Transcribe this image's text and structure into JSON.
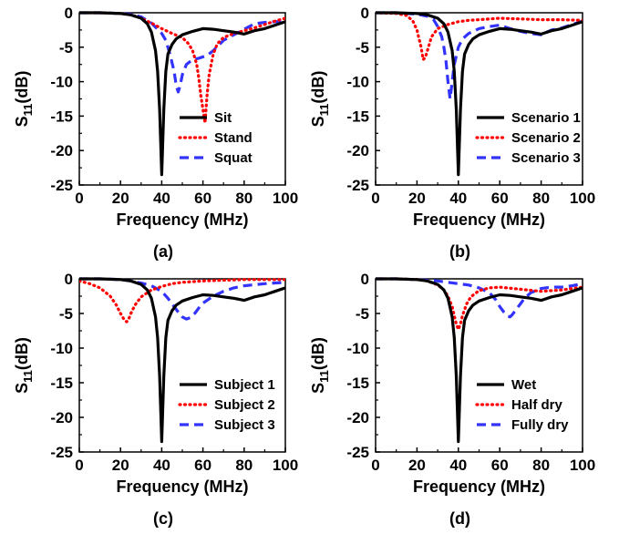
{
  "colors": {
    "solid": "#000000",
    "dotted": "#ff0000",
    "dashed": "#3333ff"
  },
  "chart_data": [
    {
      "type": "line",
      "panel_label": "(a)",
      "xlabel": "Frequency (MHz)",
      "ylabel_main": "S",
      "ylabel_sub": "11",
      "ylabel_unit": "(dB)",
      "xlim": [
        0,
        100
      ],
      "ylim": [
        -25,
        0
      ],
      "xticks": [
        "0",
        "20",
        "40",
        "60",
        "80",
        "100"
      ],
      "yticks": [
        "0",
        "-5",
        "-10",
        "-15",
        "-20",
        "-25"
      ],
      "legend_position": "bottom-right",
      "series": [
        {
          "name": "Sit",
          "style": "solid",
          "x": [
            0,
            10,
            20,
            25,
            30,
            33,
            35,
            37,
            38,
            39,
            40,
            41,
            42,
            43,
            45,
            47,
            50,
            55,
            60,
            65,
            70,
            75,
            80,
            85,
            90,
            95,
            100
          ],
          "y": [
            0,
            0,
            -0.1,
            -0.3,
            -0.8,
            -1.6,
            -2.8,
            -5.5,
            -8.5,
            -14,
            -23.5,
            -14,
            -8.5,
            -6,
            -4.6,
            -3.8,
            -3.2,
            -2.7,
            -2.3,
            -2.4,
            -2.6,
            -2.8,
            -3.1,
            -2.6,
            -2.3,
            -1.8,
            -1.3
          ]
        },
        {
          "name": "Stand",
          "style": "dotted",
          "x": [
            0,
            10,
            20,
            25,
            30,
            35,
            40,
            45,
            50,
            53,
            55,
            57,
            58,
            59,
            60,
            61,
            62,
            63,
            65,
            67,
            70,
            75,
            80,
            85,
            90,
            95,
            100
          ],
          "y": [
            0,
            0,
            -0.1,
            -0.3,
            -0.8,
            -1.5,
            -2.3,
            -3.0,
            -3.6,
            -4.5,
            -5.5,
            -7.5,
            -9.5,
            -12,
            -14,
            -16,
            -12,
            -9,
            -6,
            -4.5,
            -3.6,
            -3,
            -2.6,
            -2.2,
            -1.7,
            -1.2,
            -0.8
          ]
        },
        {
          "name": "Squat",
          "style": "dashed",
          "x": [
            0,
            10,
            20,
            25,
            30,
            35,
            40,
            42,
            44,
            46,
            47,
            48,
            49,
            50,
            52,
            55,
            58,
            62,
            65,
            70,
            75,
            80,
            85,
            90,
            95,
            100
          ],
          "y": [
            0,
            0,
            -0.1,
            -0.2,
            -0.6,
            -1.5,
            -3,
            -4,
            -6,
            -8.5,
            -10.5,
            -11.5,
            -10.5,
            -9,
            -7.5,
            -6.8,
            -6.6,
            -6.2,
            -5.5,
            -4,
            -3.2,
            -2.4,
            -1.6,
            -1.4,
            -1.3,
            -1.2
          ]
        }
      ]
    },
    {
      "type": "line",
      "panel_label": "(b)",
      "xlabel": "Frequency (MHz)",
      "ylabel_main": "S",
      "ylabel_sub": "11",
      "ylabel_unit": "(dB)",
      "xlim": [
        0,
        100
      ],
      "ylim": [
        -25,
        0
      ],
      "xticks": [
        "0",
        "20",
        "40",
        "60",
        "80",
        "100"
      ],
      "yticks": [
        "0",
        "-5",
        "-10",
        "-15",
        "-20",
        "-25"
      ],
      "legend_position": "bottom-right",
      "series": [
        {
          "name": "Scenario 1",
          "style": "solid",
          "x": [
            0,
            10,
            20,
            25,
            30,
            33,
            35,
            37,
            38,
            39,
            40,
            41,
            42,
            43,
            45,
            47,
            50,
            55,
            60,
            65,
            70,
            75,
            80,
            85,
            90,
            95,
            100
          ],
          "y": [
            0,
            0,
            -0.1,
            -0.3,
            -0.8,
            -1.6,
            -2.8,
            -5.5,
            -8.5,
            -14,
            -23.5,
            -14,
            -8.5,
            -6,
            -4.6,
            -3.8,
            -3.2,
            -2.7,
            -2.3,
            -2.4,
            -2.6,
            -2.8,
            -3.1,
            -2.6,
            -2.3,
            -1.8,
            -1.3
          ]
        },
        {
          "name": "Scenario 2",
          "style": "dotted",
          "x": [
            0,
            10,
            15,
            18,
            20,
            22,
            23,
            24,
            25,
            27,
            30,
            35,
            40,
            45,
            50,
            55,
            60,
            70,
            80,
            90,
            100
          ],
          "y": [
            0,
            -0.1,
            -0.4,
            -1.2,
            -2.5,
            -5,
            -6.8,
            -6.5,
            -5.5,
            -3.5,
            -2.3,
            -1.7,
            -1.3,
            -1.1,
            -1,
            -0.9,
            -0.8,
            -0.9,
            -1,
            -1,
            -1.1
          ]
        },
        {
          "name": "Scenario 3",
          "style": "dashed",
          "x": [
            0,
            10,
            20,
            25,
            28,
            30,
            32,
            33,
            34,
            35,
            36,
            37,
            38,
            40,
            42,
            45,
            50,
            55,
            60,
            65,
            70,
            75,
            80,
            85,
            90,
            95,
            100
          ],
          "y": [
            0,
            0,
            -0.2,
            -0.5,
            -1,
            -2,
            -3.5,
            -5,
            -7,
            -10,
            -12.5,
            -10,
            -7.5,
            -5,
            -3.8,
            -3,
            -2.3,
            -2,
            -1.8,
            -2.3,
            -2.7,
            -3,
            -3.2,
            -2.5,
            -2.2,
            -1.7,
            -1.2
          ]
        }
      ]
    },
    {
      "type": "line",
      "panel_label": "(c)",
      "xlabel": "Frequency (MHz)",
      "ylabel_main": "S",
      "ylabel_sub": "11",
      "ylabel_unit": "(dB)",
      "xlim": [
        0,
        100
      ],
      "ylim": [
        -25,
        0
      ],
      "xticks": [
        "0",
        "20",
        "40",
        "60",
        "80",
        "100"
      ],
      "yticks": [
        "0",
        "-5",
        "-10",
        "-15",
        "-20",
        "-25"
      ],
      "legend_position": "bottom-right",
      "series": [
        {
          "name": "Subject 1",
          "style": "solid",
          "x": [
            0,
            10,
            20,
            25,
            30,
            33,
            35,
            37,
            38,
            39,
            40,
            41,
            42,
            43,
            45,
            47,
            50,
            55,
            60,
            65,
            70,
            75,
            80,
            85,
            90,
            95,
            100
          ],
          "y": [
            0,
            0,
            -0.1,
            -0.3,
            -0.8,
            -1.6,
            -2.8,
            -5.5,
            -8.5,
            -14,
            -23.5,
            -14,
            -8.5,
            -6,
            -4.6,
            -3.8,
            -3.2,
            -2.7,
            -2.3,
            -2.4,
            -2.6,
            -2.8,
            -3.1,
            -2.6,
            -2.3,
            -1.8,
            -1.3
          ]
        },
        {
          "name": "Subject 2",
          "style": "dotted",
          "x": [
            0,
            5,
            10,
            15,
            18,
            20,
            22,
            23,
            24,
            25,
            27,
            30,
            35,
            40,
            45,
            50,
            60,
            70,
            80,
            90,
            100
          ],
          "y": [
            -0.3,
            -0.7,
            -1.3,
            -2.5,
            -3.8,
            -5,
            -6,
            -6.2,
            -5.8,
            -5,
            -3.8,
            -2.6,
            -1.6,
            -1.1,
            -0.7,
            -0.5,
            -0.3,
            -0.2,
            -0.1,
            -0.1,
            -0.1
          ]
        },
        {
          "name": "Subject 3",
          "style": "dashed",
          "x": [
            0,
            10,
            20,
            25,
            30,
            35,
            40,
            43,
            46,
            48,
            50,
            52,
            54,
            56,
            58,
            60,
            65,
            70,
            75,
            80,
            90,
            100
          ],
          "y": [
            0,
            0,
            -0.1,
            -0.3,
            -0.6,
            -1,
            -1.8,
            -2.8,
            -4,
            -4.8,
            -5.5,
            -5.8,
            -5.6,
            -5,
            -4.2,
            -3.5,
            -2.5,
            -1.8,
            -1.3,
            -1,
            -0.7,
            -0.5
          ]
        }
      ]
    },
    {
      "type": "line",
      "panel_label": "(d)",
      "xlabel": "Frequency (MHz)",
      "ylabel_main": "S",
      "ylabel_sub": "11",
      "ylabel_unit": "(dB)",
      "xlim": [
        0,
        100
      ],
      "ylim": [
        -25,
        0
      ],
      "xticks": [
        "0",
        "20",
        "40",
        "60",
        "80",
        "100"
      ],
      "yticks": [
        "0",
        "-5",
        "-10",
        "-15",
        "-20",
        "-25"
      ],
      "legend_position": "bottom-right",
      "series": [
        {
          "name": "Wet",
          "style": "solid",
          "x": [
            0,
            10,
            20,
            25,
            30,
            33,
            35,
            37,
            38,
            39,
            40,
            41,
            42,
            43,
            45,
            47,
            50,
            55,
            60,
            65,
            70,
            75,
            80,
            85,
            90,
            95,
            100
          ],
          "y": [
            0,
            0,
            -0.1,
            -0.3,
            -0.8,
            -1.6,
            -2.8,
            -5.5,
            -8.5,
            -14,
            -23.5,
            -14,
            -8.5,
            -6,
            -4.6,
            -3.8,
            -3.2,
            -2.7,
            -2.3,
            -2.4,
            -2.6,
            -2.8,
            -3.1,
            -2.6,
            -2.3,
            -1.8,
            -1.3
          ]
        },
        {
          "name": "Half dry",
          "style": "dotted",
          "x": [
            0,
            10,
            20,
            25,
            30,
            33,
            35,
            37,
            38,
            39,
            40,
            41,
            42,
            44,
            46,
            50,
            55,
            60,
            70,
            80,
            90,
            100
          ],
          "y": [
            0,
            0,
            -0.1,
            -0.3,
            -0.9,
            -1.6,
            -2.5,
            -4,
            -5.3,
            -6.5,
            -7.3,
            -6.5,
            -5.3,
            -3.6,
            -2.6,
            -1.7,
            -1.3,
            -1.2,
            -1.5,
            -1.8,
            -1.6,
            -1.2
          ]
        },
        {
          "name": "Fully dry",
          "style": "dashed",
          "x": [
            0,
            10,
            20,
            25,
            30,
            35,
            40,
            45,
            50,
            55,
            58,
            60,
            62,
            64,
            65,
            66,
            68,
            70,
            72,
            75,
            80,
            85,
            90,
            95,
            100
          ],
          "y": [
            0,
            0,
            -0.1,
            -0.2,
            -0.3,
            -0.5,
            -0.7,
            -0.9,
            -1.3,
            -2,
            -3,
            -4,
            -4.8,
            -5.4,
            -5.5,
            -5.2,
            -4.4,
            -3.6,
            -2.8,
            -2,
            -1.4,
            -1.2,
            -1.2,
            -1,
            -0.7
          ]
        }
      ]
    }
  ]
}
